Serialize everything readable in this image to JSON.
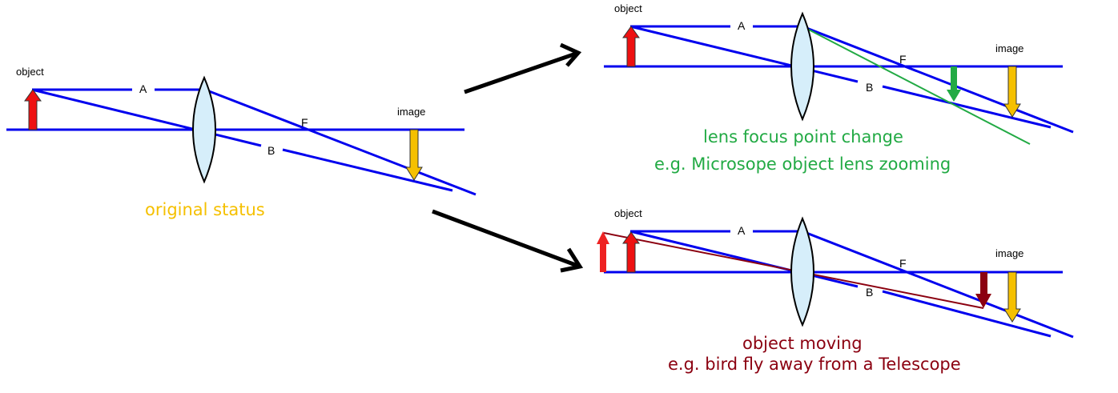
{
  "labels": {
    "object": "object",
    "image": "image",
    "ray_a": "A",
    "ray_b": "B",
    "focus": "F"
  },
  "captions": {
    "original": "original status",
    "focus_change_title": "lens focus point change",
    "focus_change_example": "e.g. Microsope object lens zooming",
    "object_moving_title": "object moving",
    "object_moving_example": "e.g. bird fly away from a Telescope"
  },
  "colors": {
    "axis": "#0000ee",
    "ray": "#0000ee",
    "object_arrow": "#ee1111",
    "image_arrow": "#f5c000",
    "lens_fill": "#d6eefa",
    "green": "#22aa44",
    "dark_red": "#8b0010",
    "original_caption": "#f5c000",
    "focus_caption": "#22aa44",
    "moving_caption": "#8b0010",
    "transition_arrow": "#000000"
  }
}
